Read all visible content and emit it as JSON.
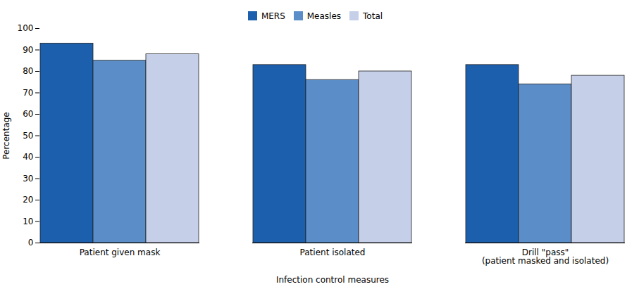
{
  "chart_data": {
    "type": "bar",
    "categories": [
      "Patient given mask",
      "Patient isolated",
      "Drill \"pass\"\n(patient masked and isolated)"
    ],
    "series": [
      {
        "name": "MERS",
        "color": "#1B5FAD",
        "values": [
          93,
          83,
          83
        ]
      },
      {
        "name": "Measles",
        "color": "#5B8EC8",
        "values": [
          85,
          76,
          74
        ]
      },
      {
        "name": "Total",
        "color": "#C5D0E8",
        "values": [
          88,
          80,
          78
        ]
      }
    ],
    "xlabel": "Infection control measures",
    "ylabel": "Percentage",
    "ylim": [
      0,
      100
    ],
    "yticks": [
      0,
      10,
      20,
      30,
      40,
      50,
      60,
      70,
      80,
      90,
      100
    ],
    "grid": false,
    "legend": "top"
  }
}
